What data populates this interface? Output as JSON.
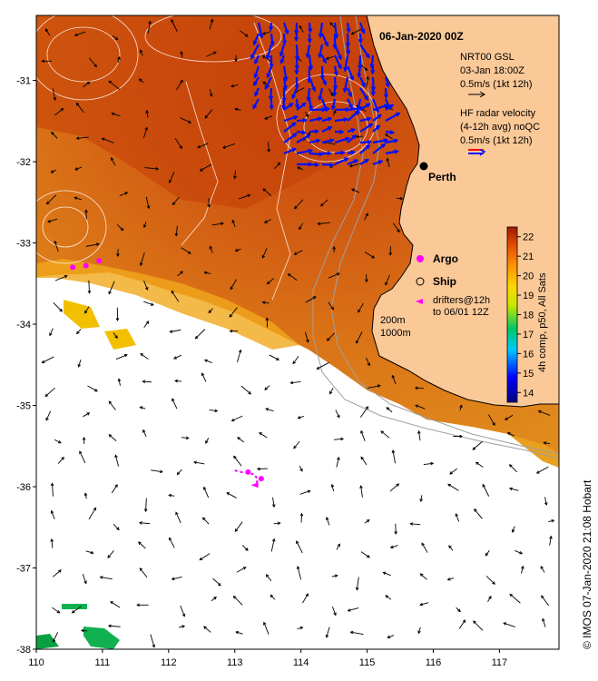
{
  "title": "06-Jan-2020 00Z",
  "place": {
    "name": "Perth",
    "lon": 115.86,
    "lat": -31.95
  },
  "legend": {
    "gsl_title": "NRT00 GSL",
    "gsl_time": "03-Jan 18:00Z",
    "gsl_scale": "0.5m/s (1kt 12h)",
    "hf_title_1": "HF radar velocity",
    "hf_title_2": "(4-12h avg) noQC",
    "hf_scale": "0.5m/s (1kt 12h)",
    "argo": "Argo",
    "ship": "Ship",
    "drifters_1": "drifters@12h",
    "drifters_2": "to 06/01 12Z",
    "depth_1": "200m",
    "depth_2": "1000m"
  },
  "colorbar": {
    "label": "4h comp, p50, All Sats",
    "min": 13.5,
    "max": 22.5,
    "ticks": [
      "14",
      "15",
      "16",
      "17",
      "18",
      "19",
      "20",
      "21",
      "22"
    ]
  },
  "credit": "© IMOS 07-Jan-2020 21:08 Hobart",
  "axes": {
    "lon_range": [
      110,
      117.9
    ],
    "lat_range": [
      -38,
      -30.2
    ],
    "x_ticks": [
      "110",
      "111",
      "112",
      "113",
      "114",
      "115",
      "116",
      "117"
    ],
    "y_ticks": [
      "-31",
      "-32",
      "-33",
      "-34",
      "-35",
      "-36",
      "-37",
      "-38"
    ]
  },
  "colors": {
    "land": "#fbc998",
    "hf_arrow": "#0010ff",
    "argo": "#ff00ff",
    "ship": "#000000"
  },
  "argo_floats": [
    [
      110.55,
      -33.3
    ],
    [
      110.75,
      -33.28
    ],
    [
      110.95,
      -33.22
    ],
    [
      113.2,
      -35.82
    ],
    [
      113.4,
      -35.9
    ]
  ],
  "drifter_tracks": [
    [
      [
        113.0,
        -35.8
      ],
      [
        113.1,
        -35.82
      ],
      [
        113.2,
        -35.83
      ],
      [
        113.3,
        -35.85
      ],
      [
        113.35,
        -35.92
      ],
      [
        113.3,
        -35.98
      ]
    ]
  ]
}
